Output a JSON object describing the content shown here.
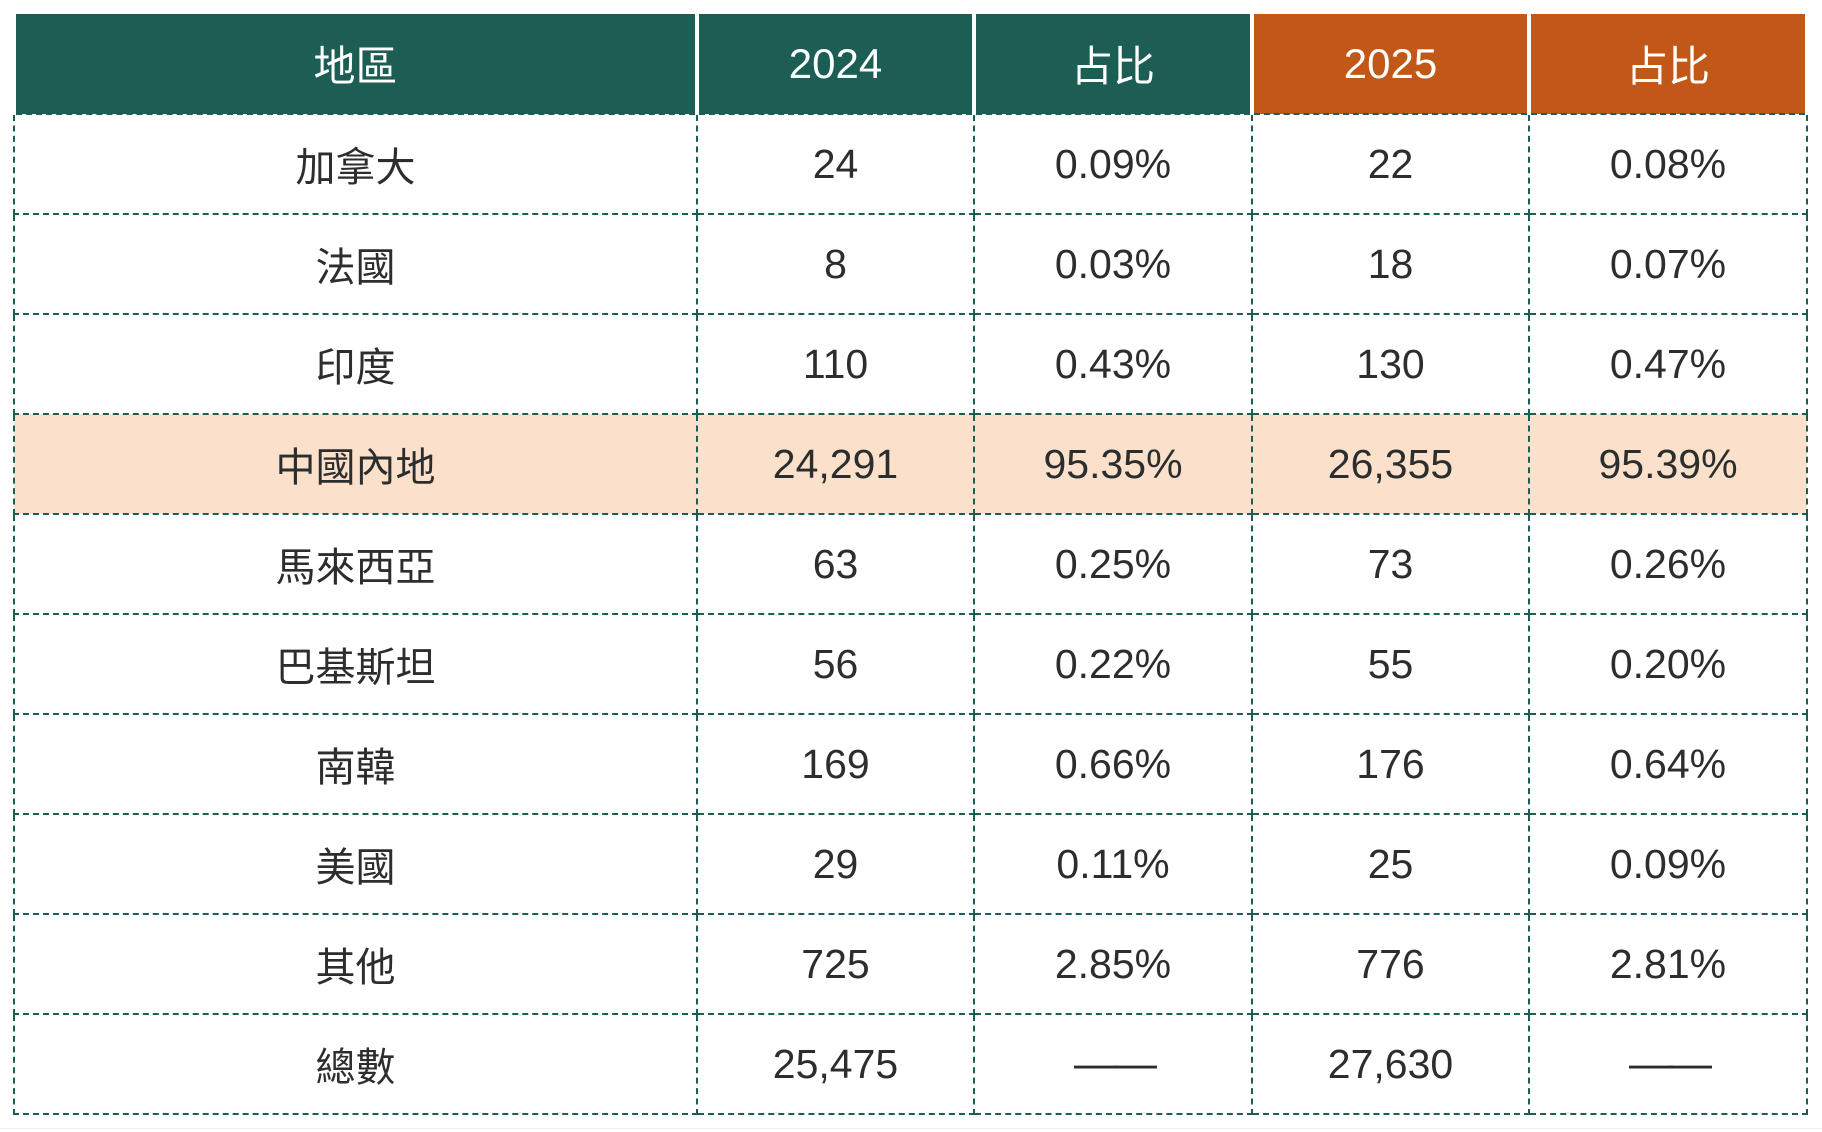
{
  "table": {
    "columns": [
      {
        "label": "地區",
        "theme": "teal"
      },
      {
        "label": "2024",
        "theme": "teal"
      },
      {
        "label": "占比",
        "theme": "teal"
      },
      {
        "label": "2025",
        "theme": "orange"
      },
      {
        "label": "占比",
        "theme": "orange"
      }
    ],
    "rows": [
      {
        "region": "加拿大",
        "v2024": "24",
        "p2024": "0.09%",
        "v2025": "22",
        "p2025": "0.08%",
        "highlight": false,
        "total": false
      },
      {
        "region": "法國",
        "v2024": "8",
        "p2024": "0.03%",
        "v2025": "18",
        "p2025": "0.07%",
        "highlight": false,
        "total": false
      },
      {
        "region": "印度",
        "v2024": "110",
        "p2024": "0.43%",
        "v2025": "130",
        "p2025": "0.47%",
        "highlight": false,
        "total": false
      },
      {
        "region": "中國內地",
        "v2024": "24,291",
        "p2024": "95.35%",
        "v2025": "26,355",
        "p2025": "95.39%",
        "highlight": true,
        "total": false
      },
      {
        "region": "馬來西亞",
        "v2024": "63",
        "p2024": "0.25%",
        "v2025": "73",
        "p2025": "0.26%",
        "highlight": false,
        "total": false
      },
      {
        "region": "巴基斯坦",
        "v2024": "56",
        "p2024": "0.22%",
        "v2025": "55",
        "p2025": "0.20%",
        "highlight": false,
        "total": false
      },
      {
        "region": "南韓",
        "v2024": "169",
        "p2024": "0.66%",
        "v2025": "176",
        "p2025": "0.64%",
        "highlight": false,
        "total": false
      },
      {
        "region": "美國",
        "v2024": "29",
        "p2024": "0.11%",
        "v2025": "25",
        "p2025": "0.09%",
        "highlight": false,
        "total": false
      },
      {
        "region": "其他",
        "v2024": "725",
        "p2024": "2.85%",
        "v2025": "776",
        "p2025": "2.81%",
        "highlight": false,
        "total": false
      },
      {
        "region": "總數",
        "v2024": "25,475",
        "p2024": "——",
        "v2025": "27,630",
        "p2025": "——",
        "highlight": false,
        "total": true
      }
    ],
    "colors": {
      "teal": "#1C5D54",
      "orange": "#C25817",
      "highlight": "#FBE0CB",
      "border": "#1C5D54",
      "text": "#2C2E2D",
      "header_text": "#FFFFFF"
    }
  },
  "chart_data": {
    "type": "table",
    "title": "",
    "columns": [
      "地區",
      "2024",
      "占比",
      "2025",
      "占比"
    ],
    "rows": [
      [
        "加拿大",
        "24",
        "0.09%",
        "22",
        "0.08%"
      ],
      [
        "法國",
        "8",
        "0.03%",
        "18",
        "0.07%"
      ],
      [
        "印度",
        "110",
        "0.43%",
        "130",
        "0.47%"
      ],
      [
        "中國內地",
        "24,291",
        "95.35%",
        "26,355",
        "95.39%"
      ],
      [
        "馬來西亞",
        "63",
        "0.25%",
        "73",
        "0.26%"
      ],
      [
        "巴基斯坦",
        "56",
        "0.22%",
        "55",
        "0.20%"
      ],
      [
        "南韓",
        "169",
        "0.66%",
        "176",
        "0.64%"
      ],
      [
        "美國",
        "29",
        "0.11%",
        "25",
        "0.09%"
      ],
      [
        "其他",
        "725",
        "2.85%",
        "776",
        "2.81%"
      ],
      [
        "總數",
        "25,475",
        "——",
        "27,630",
        "——"
      ]
    ],
    "highlighted_row": "中國內地",
    "totals_row": "總數",
    "layout_hints": {
      "header_themes": [
        "teal",
        "teal",
        "teal",
        "orange",
        "orange"
      ],
      "grid": "dashed-teal",
      "first_column_wide": true
    }
  }
}
